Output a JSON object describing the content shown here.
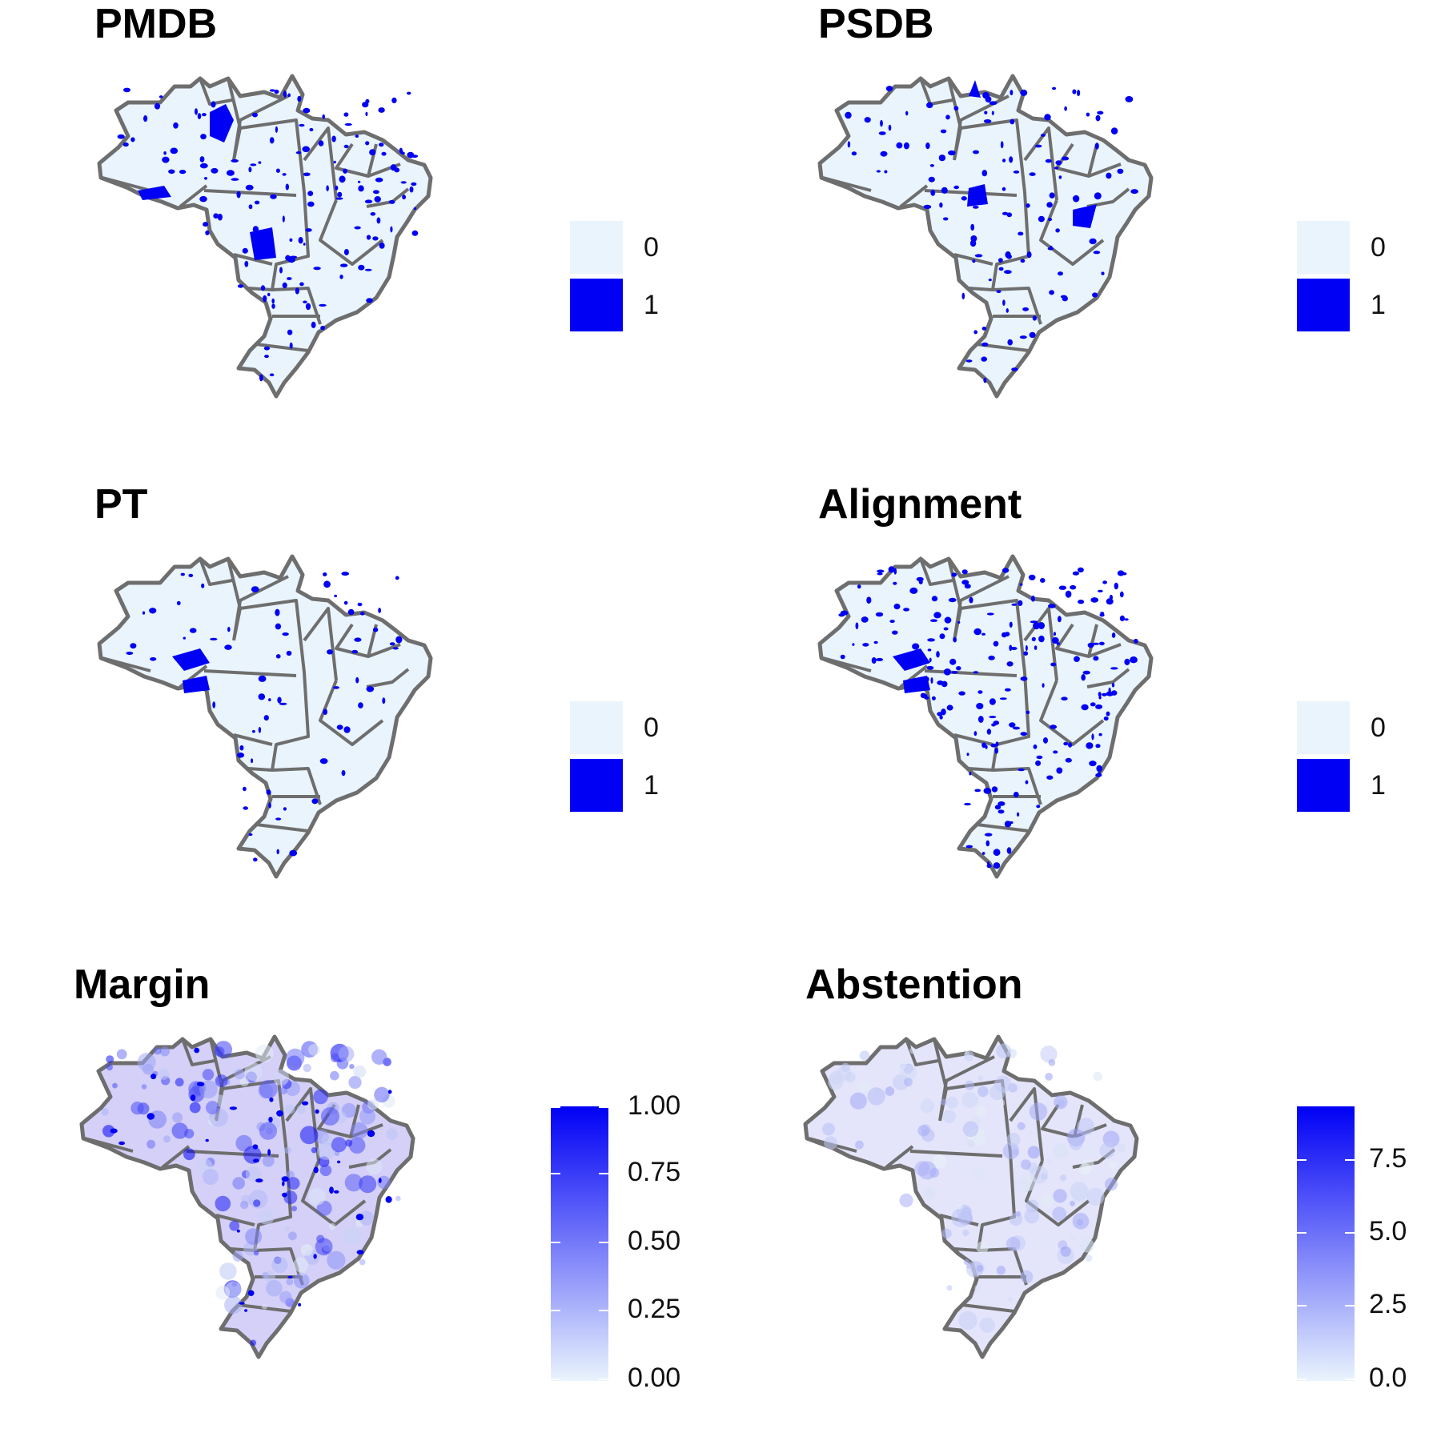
{
  "colors": {
    "low": "#eaf4fd",
    "high": "#0000f5",
    "border": "#6e6e6e"
  },
  "panels": [
    {
      "title": "PMDB",
      "legend_type": "discrete",
      "keys": [
        "0",
        "1"
      ]
    },
    {
      "title": "PSDB",
      "legend_type": "discrete",
      "keys": [
        "0",
        "1"
      ]
    },
    {
      "title": "PT",
      "legend_type": "discrete",
      "keys": [
        "0",
        "1"
      ]
    },
    {
      "title": "Alignment",
      "legend_type": "discrete",
      "keys": [
        "0",
        "1"
      ]
    },
    {
      "title": "Margin",
      "legend_type": "continuous",
      "range": [
        0,
        1
      ],
      "ticks": [
        "0.00",
        "0.25",
        "0.50",
        "0.75",
        "1.00"
      ]
    },
    {
      "title": "Abstention",
      "legend_type": "continuous",
      "range": [
        0,
        9.5
      ],
      "ticks": [
        "0.0",
        "2.5",
        "5.0",
        "7.5"
      ]
    }
  ]
}
